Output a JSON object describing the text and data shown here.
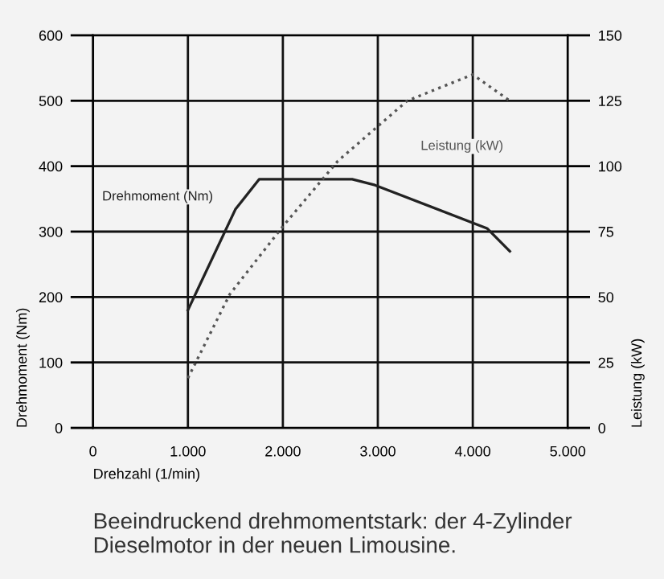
{
  "chart_data": {
    "type": "line",
    "x": [
      1000,
      1500,
      1750,
      2730,
      2970,
      4150,
      4390
    ],
    "series": [
      {
        "name": "Drehmoment (Nm)",
        "color": "#222222",
        "line_style": "solid",
        "values": [
          180,
          334,
          380,
          380,
          371,
          305,
          270
        ]
      },
      {
        "name": "Leistung (kW)",
        "color": "#555555",
        "line_style": "dotted",
        "axis": "y2",
        "x": [
          1000,
          1440,
          2000,
          2580,
          3310,
          4000,
          4390
        ],
        "values": [
          19,
          51,
          77,
          102,
          125,
          135,
          125
        ]
      }
    ],
    "xlabel": "Drehzahl (1/min)",
    "ylabel": "Drehmoment (Nm)",
    "y2label": "Leistung (kW)",
    "xlim": [
      0,
      5000
    ],
    "xticks": [
      0,
      {
        "value": 1000,
        "label": "1.000"
      },
      {
        "value": 2000,
        "label": "2.000"
      },
      {
        "value": 3000,
        "label": "3.000"
      },
      {
        "value": 4000,
        "label": "4.000"
      },
      {
        "value": 5000,
        "label": "5.000"
      }
    ],
    "ylim": [
      0,
      600
    ],
    "yticks": [
      0,
      100,
      200,
      300,
      400,
      500,
      600
    ],
    "y2lim": [
      0,
      150
    ],
    "y2ticks": [
      0,
      25,
      50,
      75,
      100,
      125,
      150
    ],
    "grid": true,
    "marker": "none",
    "annotations": [
      "Beeindruckend drehmomentstark: der 4-Zylinder Dieselmotor in der neuen Limousine."
    ]
  }
}
